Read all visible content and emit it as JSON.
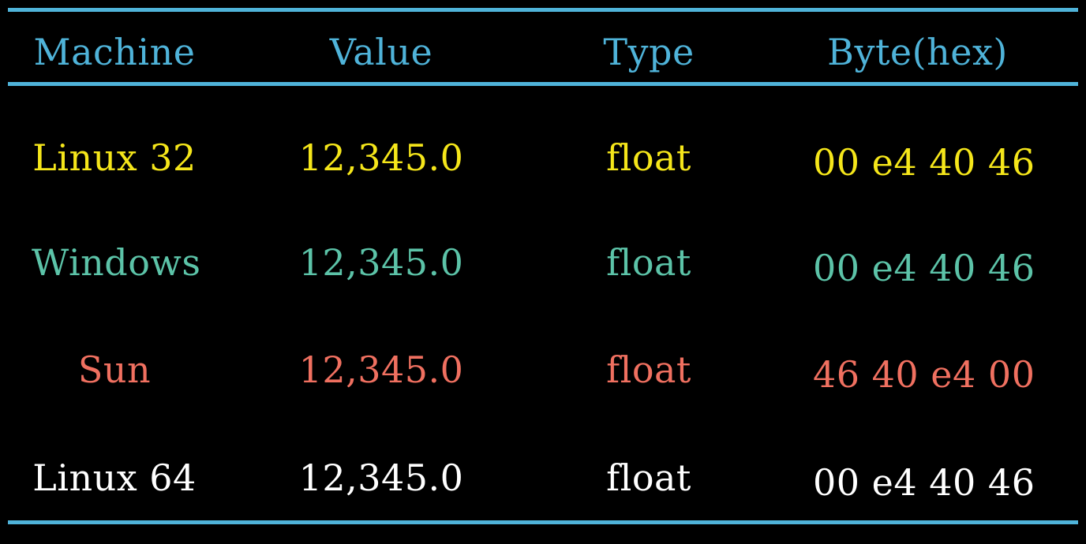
{
  "table": {
    "headers": {
      "machine": "Machine",
      "value": "Value",
      "type": "Type",
      "bytes": "Byte(hex)"
    },
    "rows": [
      {
        "machine": "Linux 32",
        "value": "12,345.0",
        "type": "float",
        "bytes": "00 e4 40 46",
        "color": "#f5e61a"
      },
      {
        "machine": "Windows",
        "value": "12,345.0",
        "type": "float",
        "bytes": "00 e4 40 46",
        "color": "#5cc3a8"
      },
      {
        "machine": "Sun",
        "value": "12,345.0",
        "type": "float",
        "bytes": "46 40 e4 00",
        "color": "#f07060"
      },
      {
        "machine": "Linux 64",
        "value": "12,345.0",
        "type": "float",
        "bytes": "00 e4 40 46",
        "color": "#ffffff"
      }
    ]
  },
  "colors": {
    "header": "#4fb3d9",
    "rules": "#4fb3d9",
    "background": "#000000"
  }
}
